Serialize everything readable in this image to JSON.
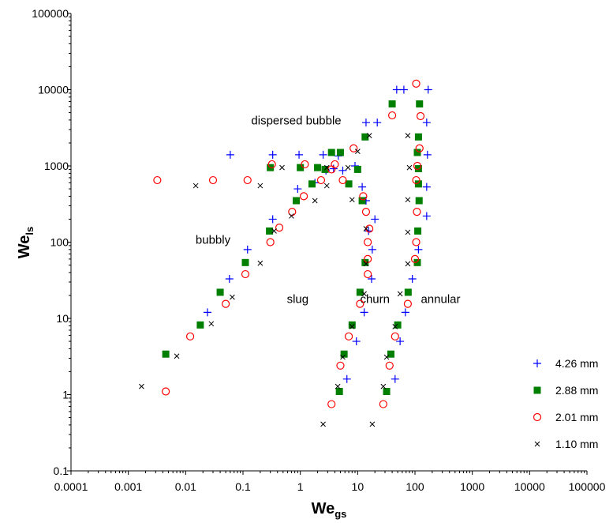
{
  "chart_data": {
    "type": "scatter",
    "x_scale": "log",
    "y_scale": "log",
    "xlim": [
      0.0001,
      100000
    ],
    "ylim": [
      0.1,
      100000
    ],
    "grid": false,
    "legend_position": "bottom-right",
    "xlabel": {
      "main": "We",
      "sub": "gs"
    },
    "ylabel": {
      "main": "We",
      "sub": "ls"
    },
    "x_ticks": [
      "0.0001",
      "0.001",
      "0.01",
      "0.1",
      "1",
      "10",
      "100",
      "1000",
      "10000",
      "100000"
    ],
    "y_ticks": [
      "0.1",
      "1",
      "10",
      "100",
      "1000",
      "10000",
      "100000"
    ],
    "regions": [
      {
        "label": "dispersed bubble",
        "x": 0.85,
        "y": 3500
      },
      {
        "label": "bubbly",
        "x": 0.03,
        "y": 95
      },
      {
        "label": "slug",
        "x": 0.9,
        "y": 16
      },
      {
        "label": "churn",
        "x": 20,
        "y": 16
      },
      {
        "label": "annular",
        "x": 280,
        "y": 16
      }
    ],
    "series": [
      {
        "name": "4.26 mm",
        "marker": "plus",
        "color": "#0000ff",
        "points": [
          [
            0.024,
            12
          ],
          [
            0.058,
            33
          ],
          [
            0.12,
            80
          ],
          [
            0.33,
            200
          ],
          [
            0.9,
            500
          ],
          [
            1.8,
            600
          ],
          [
            2.8,
            870
          ],
          [
            3.8,
            920
          ],
          [
            5.5,
            870
          ],
          [
            9,
            1000
          ],
          [
            12,
            530
          ],
          [
            14,
            350
          ],
          [
            15.5,
            140
          ],
          [
            18,
            80
          ],
          [
            20,
            200
          ],
          [
            17.5,
            33
          ],
          [
            13,
            12
          ],
          [
            9.5,
            5
          ],
          [
            6.5,
            1.6
          ],
          [
            0.06,
            1400
          ],
          [
            0.33,
            1400
          ],
          [
            0.95,
            1400
          ],
          [
            2.5,
            1400
          ],
          [
            4.6,
            1350
          ],
          [
            14,
            3700
          ],
          [
            22,
            3700
          ],
          [
            48,
            10000
          ],
          [
            64,
            10000
          ],
          [
            170,
            10000
          ],
          [
            160,
            3700
          ],
          [
            165,
            1400
          ],
          [
            160,
            530
          ],
          [
            160,
            220
          ],
          [
            115,
            80
          ],
          [
            90,
            33
          ],
          [
            68,
            12
          ],
          [
            55,
            5
          ],
          [
            45,
            1.6
          ]
        ]
      },
      {
        "name": "2.88 mm",
        "marker": "square",
        "color": "#007f00",
        "points": [
          [
            0.0045,
            3.4
          ],
          [
            0.018,
            8.2
          ],
          [
            0.04,
            22
          ],
          [
            0.11,
            54
          ],
          [
            0.29,
            140
          ],
          [
            0.85,
            350
          ],
          [
            1.6,
            580
          ],
          [
            2.7,
            900
          ],
          [
            3.5,
            1500
          ],
          [
            5.0,
            1500
          ],
          [
            7.0,
            580
          ],
          [
            12,
            350
          ],
          [
            13.5,
            54
          ],
          [
            11,
            22
          ],
          [
            8,
            8.2
          ],
          [
            5.8,
            3.4
          ],
          [
            4.8,
            1.1
          ],
          [
            0.3,
            950
          ],
          [
            1.0,
            950
          ],
          [
            2.0,
            950
          ],
          [
            10,
            900
          ],
          [
            13.5,
            2400
          ],
          [
            40,
            6500
          ],
          [
            120,
            6500
          ],
          [
            115,
            2400
          ],
          [
            110,
            1500
          ],
          [
            115,
            920
          ],
          [
            115,
            580
          ],
          [
            118,
            350
          ],
          [
            112,
            140
          ],
          [
            110,
            54
          ],
          [
            76,
            22
          ],
          [
            50,
            8.2
          ],
          [
            38,
            3.4
          ],
          [
            32,
            1.1
          ]
        ]
      },
      {
        "name": "2.01 mm",
        "marker": "circle",
        "color": "#ff0000",
        "points": [
          [
            0.0045,
            1.1
          ],
          [
            0.012,
            5.8
          ],
          [
            0.05,
            15.5
          ],
          [
            0.11,
            38
          ],
          [
            0.3,
            100
          ],
          [
            0.43,
            155
          ],
          [
            0.72,
            250
          ],
          [
            1.15,
            400
          ],
          [
            2.3,
            650
          ],
          [
            4.0,
            1050
          ],
          [
            8.5,
            1700
          ],
          [
            0.0032,
            650
          ],
          [
            0.03,
            650
          ],
          [
            0.12,
            650
          ],
          [
            0.32,
            1050
          ],
          [
            1.2,
            1050
          ],
          [
            3.5,
            900
          ],
          [
            5.5,
            650
          ],
          [
            12.5,
            400
          ],
          [
            14,
            250
          ],
          [
            16,
            150
          ],
          [
            15,
            100
          ],
          [
            15,
            60
          ],
          [
            15,
            38
          ],
          [
            11,
            15.5
          ],
          [
            7,
            5.8
          ],
          [
            5,
            2.4
          ],
          [
            3.5,
            0.75
          ],
          [
            40,
            4600
          ],
          [
            105,
            12000
          ],
          [
            125,
            4500
          ],
          [
            120,
            1700
          ],
          [
            110,
            1000
          ],
          [
            105,
            650
          ],
          [
            108,
            250
          ],
          [
            105,
            100
          ],
          [
            100,
            60
          ],
          [
            75,
            15.5
          ],
          [
            45,
            5.8
          ],
          [
            36,
            2.4
          ],
          [
            28,
            0.75
          ]
        ]
      },
      {
        "name": "1.10 mm",
        "marker": "cross",
        "color": "#000000",
        "points": [
          [
            0.0017,
            1.28
          ],
          [
            0.007,
            3.2
          ],
          [
            0.028,
            8.5
          ],
          [
            0.065,
            19
          ],
          [
            0.2,
            53
          ],
          [
            0.35,
            140
          ],
          [
            0.7,
            220
          ],
          [
            1.8,
            350
          ],
          [
            2.9,
            550
          ],
          [
            0.015,
            550
          ],
          [
            0.2,
            550
          ],
          [
            0.48,
            950
          ],
          [
            2.9,
            950
          ],
          [
            6.8,
            950
          ],
          [
            10,
            1550
          ],
          [
            16,
            2500
          ],
          [
            8,
            360
          ],
          [
            14,
            150
          ],
          [
            14,
            52
          ],
          [
            13,
            21
          ],
          [
            8,
            7.8
          ],
          [
            5.5,
            3.1
          ],
          [
            4.5,
            1.28
          ],
          [
            2.5,
            0.41
          ],
          [
            75,
            2500
          ],
          [
            80,
            950
          ],
          [
            75,
            360
          ],
          [
            75,
            135
          ],
          [
            75,
            52
          ],
          [
            55,
            21
          ],
          [
            45,
            7.8
          ],
          [
            32,
            3.1
          ],
          [
            28,
            1.28
          ],
          [
            18,
            0.41
          ]
        ]
      }
    ]
  }
}
